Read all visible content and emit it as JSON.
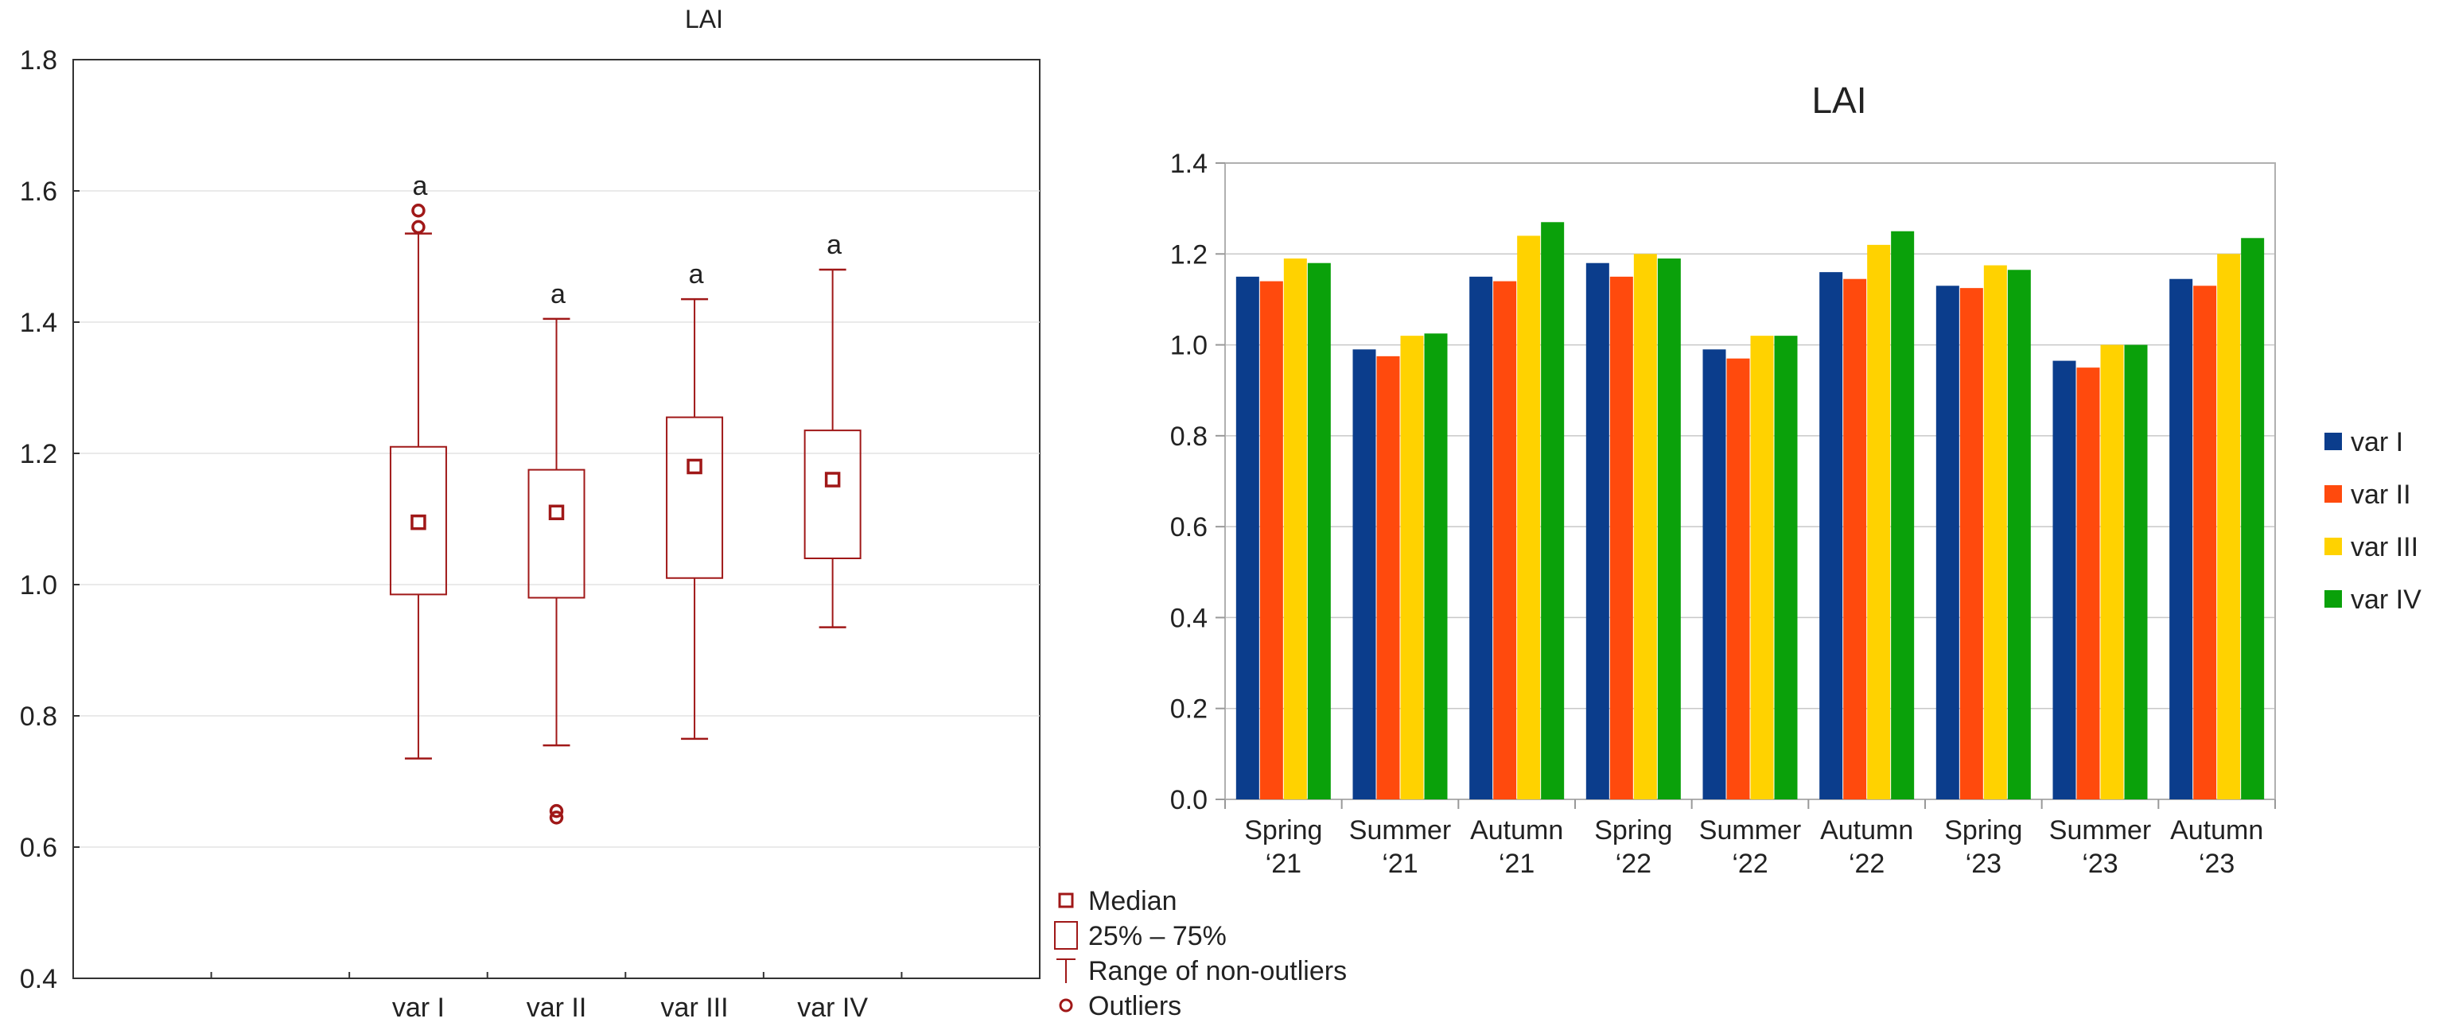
{
  "chart_data": [
    {
      "type": "boxplot",
      "title": "LAI",
      "xlabel": "",
      "ylabel": "",
      "ylim": [
        0.4,
        1.8
      ],
      "yticks": [
        "0.4",
        "0.6",
        "0.8",
        "1.0",
        "1.2",
        "1.4",
        "1.6",
        "1.8"
      ],
      "categories": [
        "var I",
        "var II",
        "var III",
        "var IV"
      ],
      "boxes": [
        {
          "median": 1.095,
          "q1": 0.985,
          "q3": 1.21,
          "whisker_low": 0.735,
          "whisker_high": 1.535,
          "outliers": [
            1.545,
            1.57
          ],
          "letter": "a"
        },
        {
          "median": 1.11,
          "q1": 0.98,
          "q3": 1.175,
          "whisker_low": 0.755,
          "whisker_high": 1.405,
          "outliers": [
            0.645,
            0.655
          ],
          "letter": "a"
        },
        {
          "median": 1.18,
          "q1": 1.01,
          "q3": 1.255,
          "whisker_low": 0.765,
          "whisker_high": 1.435,
          "outliers": [],
          "letter": "a"
        },
        {
          "median": 1.16,
          "q1": 1.04,
          "q3": 1.235,
          "whisker_low": 0.935,
          "whisker_high": 1.48,
          "outliers": [],
          "letter": "a"
        }
      ],
      "legend": [
        "Median",
        "25% – 75%",
        "Range of non-outliers",
        "Outliers"
      ],
      "color": "#a01818"
    },
    {
      "type": "bar",
      "title": "LAI",
      "xlabel": "",
      "ylabel": "",
      "ylim": [
        0,
        1.4
      ],
      "yticks": [
        "0.0",
        "0.2",
        "0.4",
        "0.6",
        "0.8",
        "1.0",
        "1.2",
        "1.4"
      ],
      "categories": [
        [
          "Spring",
          "‘21"
        ],
        [
          "Summer",
          "‘21"
        ],
        [
          "Autumn",
          "‘21"
        ],
        [
          "Spring",
          "‘22"
        ],
        [
          "Summer",
          "‘22"
        ],
        [
          "Autumn",
          "‘22"
        ],
        [
          "Spring",
          "‘23"
        ],
        [
          "Summer",
          "‘23"
        ],
        [
          "Autumn",
          "‘23"
        ]
      ],
      "series": [
        {
          "name": "var I",
          "color": "#0b3d8c",
          "values": [
            1.15,
            0.99,
            1.15,
            1.18,
            0.99,
            1.16,
            1.13,
            0.965,
            1.145
          ]
        },
        {
          "name": "var II",
          "color": "#ff4a0d",
          "values": [
            1.14,
            0.975,
            1.14,
            1.15,
            0.97,
            1.145,
            1.125,
            0.95,
            1.13
          ]
        },
        {
          "name": "var III",
          "color": "#ffd200",
          "values": [
            1.19,
            1.02,
            1.24,
            1.2,
            1.02,
            1.22,
            1.175,
            1.0,
            1.2
          ]
        },
        {
          "name": "var IV",
          "color": "#0aa10a",
          "values": [
            1.18,
            1.025,
            1.27,
            1.19,
            1.02,
            1.25,
            1.165,
            1.0,
            1.235
          ]
        }
      ],
      "legend_position": "right"
    }
  ]
}
